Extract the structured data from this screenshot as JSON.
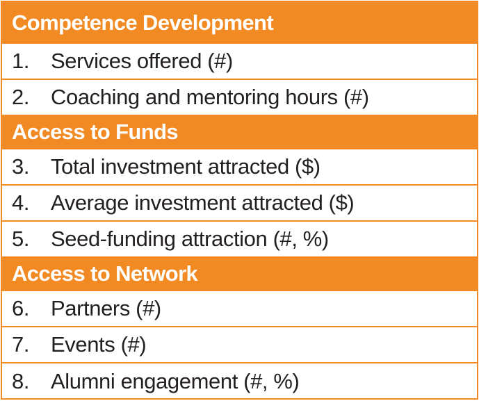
{
  "sections": [
    {
      "title": "Competence Development",
      "items": [
        {
          "number": "1.",
          "label": "Services offered (#)"
        },
        {
          "number": "2.",
          "label": "Coaching and mentoring hours (#)"
        }
      ]
    },
    {
      "title": "Access to Funds",
      "items": [
        {
          "number": "3.",
          "label": "Total investment attracted ($)"
        },
        {
          "number": "4.",
          "label": "Average investment attracted ($)"
        },
        {
          "number": "5.",
          "label": "Seed-funding attraction (#, %)"
        }
      ]
    },
    {
      "title": "Access to Network",
      "items": [
        {
          "number": "6.",
          "label": "Partners (#)"
        },
        {
          "number": "7.",
          "label": "Events (#)"
        },
        {
          "number": "8.",
          "label": "Alumni engagement (#, %)"
        }
      ]
    }
  ],
  "colors": {
    "accent": "#f28a24",
    "header_text": "#ffffff",
    "body_text": "#231f20",
    "background": "#ffffff"
  }
}
